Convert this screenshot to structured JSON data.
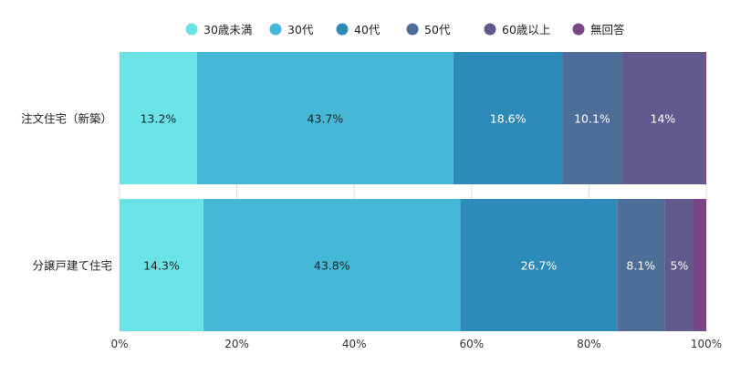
{
  "chart_data": {
    "type": "bar",
    "orientation": "horizontal-stacked-100",
    "categories": [
      "注文住宅（新築）",
      "分譲戸建て住宅"
    ],
    "series": [
      {
        "name": "30歳未満",
        "color": "#6ae3e6",
        "values": [
          13.2,
          14.3
        ],
        "labels": [
          "13.2%",
          "14.3%"
        ]
      },
      {
        "name": "30代",
        "color": "#44b8d6",
        "values": [
          43.7,
          43.8
        ],
        "labels": [
          "43.7%",
          "43.8%"
        ]
      },
      {
        "name": "40代",
        "color": "#2c8bb8",
        "values": [
          18.6,
          26.7
        ],
        "labels": [
          "18.6%",
          "26.7%"
        ]
      },
      {
        "name": "50代",
        "color": "#4d6e98",
        "values": [
          10.1,
          8.1
        ],
        "labels": [
          "10.1%",
          "8.1%"
        ]
      },
      {
        "name": "60歳以上",
        "color": "#625a8e",
        "values": [
          14,
          5
        ],
        "labels": [
          "14%",
          "5%"
        ]
      },
      {
        "name": "無回答",
        "color": "#7a4589",
        "values": [
          0.4,
          2.1
        ],
        "labels": [
          "",
          ""
        ]
      }
    ],
    "xticks": [
      "0%",
      "20%",
      "40%",
      "60%",
      "80%",
      "100%"
    ],
    "xlim": [
      0,
      100
    ],
    "grid": true,
    "legend": "top-center"
  }
}
